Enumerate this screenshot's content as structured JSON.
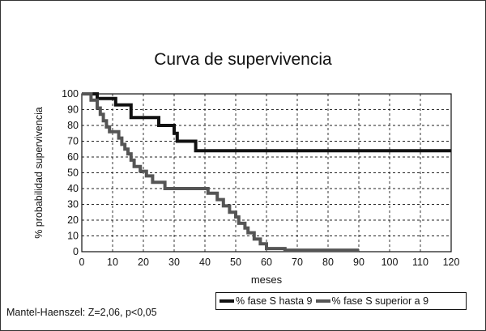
{
  "chart_data": {
    "type": "line",
    "title": "Curva de supervivencia",
    "xlabel": "meses",
    "ylabel": "% probabilidad supervivencia",
    "xlim": [
      0,
      120
    ],
    "ylim": [
      0,
      100
    ],
    "x_ticks": [
      0,
      10,
      20,
      30,
      40,
      50,
      60,
      70,
      80,
      90,
      100,
      110,
      120
    ],
    "y_ticks": [
      0,
      10,
      20,
      30,
      40,
      50,
      60,
      70,
      80,
      90,
      100
    ],
    "grid": true,
    "legend_position": "bottom-right",
    "series": [
      {
        "name": "% fase S hasta 9",
        "color": "#111111",
        "step": true,
        "points": [
          [
            0,
            100
          ],
          [
            5,
            100
          ],
          [
            5,
            97
          ],
          [
            11,
            97
          ],
          [
            11,
            93
          ],
          [
            16,
            93
          ],
          [
            16,
            85
          ],
          [
            25,
            85
          ],
          [
            25,
            80
          ],
          [
            30,
            80
          ],
          [
            30,
            75
          ],
          [
            31,
            75
          ],
          [
            31,
            70
          ],
          [
            37,
            70
          ],
          [
            37,
            64
          ],
          [
            120,
            64
          ]
        ]
      },
      {
        "name": "% fase S superior a 9",
        "color": "#555555",
        "step": true,
        "points": [
          [
            0,
            100
          ],
          [
            3,
            100
          ],
          [
            3,
            96
          ],
          [
            5,
            96
          ],
          [
            5,
            91
          ],
          [
            6,
            91
          ],
          [
            6,
            87
          ],
          [
            7,
            87
          ],
          [
            7,
            83
          ],
          [
            8,
            83
          ],
          [
            8,
            79
          ],
          [
            9,
            79
          ],
          [
            9,
            76
          ],
          [
            12,
            76
          ],
          [
            12,
            72
          ],
          [
            13,
            72
          ],
          [
            13,
            68
          ],
          [
            14,
            68
          ],
          [
            14,
            65
          ],
          [
            15,
            65
          ],
          [
            15,
            62
          ],
          [
            16,
            62
          ],
          [
            16,
            58
          ],
          [
            17,
            58
          ],
          [
            17,
            54
          ],
          [
            19,
            54
          ],
          [
            19,
            51
          ],
          [
            21,
            51
          ],
          [
            21,
            48
          ],
          [
            23,
            48
          ],
          [
            23,
            44
          ],
          [
            27,
            44
          ],
          [
            27,
            40
          ],
          [
            41,
            40
          ],
          [
            41,
            37
          ],
          [
            44,
            37
          ],
          [
            44,
            33
          ],
          [
            46,
            33
          ],
          [
            46,
            29
          ],
          [
            48,
            29
          ],
          [
            48,
            25
          ],
          [
            50,
            25
          ],
          [
            50,
            22
          ],
          [
            51,
            22
          ],
          [
            51,
            18
          ],
          [
            53,
            18
          ],
          [
            53,
            15
          ],
          [
            54,
            15
          ],
          [
            54,
            12
          ],
          [
            56,
            12
          ],
          [
            56,
            8
          ],
          [
            58,
            8
          ],
          [
            58,
            5
          ],
          [
            60,
            5
          ],
          [
            60,
            2
          ],
          [
            66,
            2
          ],
          [
            66,
            1
          ],
          [
            90,
            1
          ]
        ]
      }
    ],
    "annotation": "Mantel-Haenszel: Z=2,06, p<0,05"
  }
}
